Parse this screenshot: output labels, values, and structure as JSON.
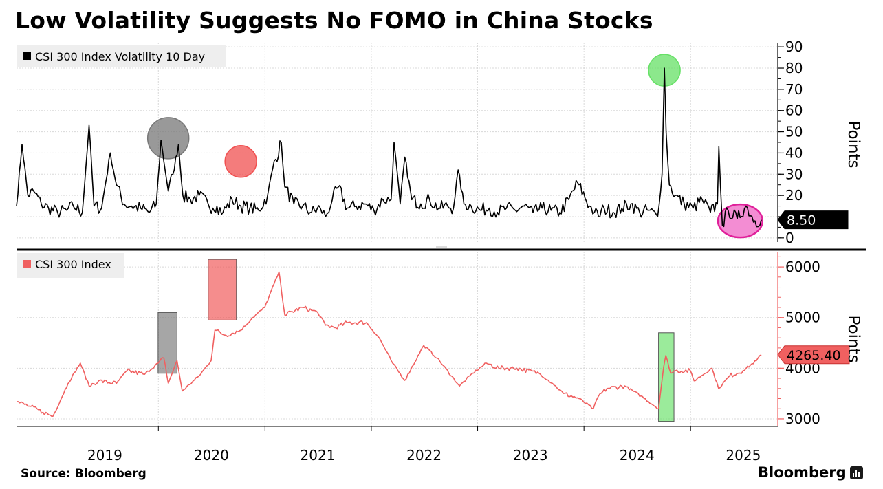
{
  "title": "Low Volatility Suggests No FOMO in China Stocks",
  "source": "Source: Bloomberg",
  "brand": "Bloomberg",
  "chart_data": [
    {
      "type": "line",
      "name": "volatility",
      "series": [
        {
          "name": "CSI 300 Index Volatility 10 Day",
          "color": "#000000"
        }
      ],
      "ylabel": "Points",
      "ylim": [
        -2,
        92
      ],
      "yticks": [
        0,
        10,
        20,
        30,
        40,
        50,
        60,
        70,
        80,
        90
      ],
      "last_value_label": "8.50",
      "x": [
        "2018-09-01",
        "2018-09-20",
        "2018-10-10",
        "2018-10-30",
        "2018-11-25",
        "2018-12-20",
        "2019-01-20",
        "2019-02-20",
        "2019-03-15",
        "2019-04-15",
        "2019-05-08",
        "2019-05-25",
        "2019-06-20",
        "2019-07-20",
        "2019-08-10",
        "2019-09-05",
        "2019-10-01",
        "2019-11-01",
        "2019-12-01",
        "2019-12-25",
        "2020-01-10",
        "2020-02-04",
        "2020-02-20",
        "2020-03-10",
        "2020-03-25",
        "2020-04-20",
        "2020-05-20",
        "2020-06-20",
        "2020-07-06",
        "2020-07-20",
        "2020-08-10",
        "2020-09-10",
        "2020-10-10",
        "2020-11-10",
        "2020-12-10",
        "2021-01-10",
        "2021-01-28",
        "2021-02-26",
        "2021-03-10",
        "2021-04-10",
        "2021-05-10",
        "2021-06-10",
        "2021-07-10",
        "2021-07-28",
        "2021-08-20",
        "2021-09-10",
        "2021-10-10",
        "2021-11-10",
        "2021-12-10",
        "2022-01-10",
        "2022-02-10",
        "2022-03-10",
        "2022-03-20",
        "2022-04-10",
        "2022-04-26",
        "2022-05-20",
        "2022-06-20",
        "2022-07-20",
        "2022-08-20",
        "2022-09-20",
        "2022-10-10",
        "2022-10-26",
        "2022-11-15",
        "2022-12-10",
        "2023-01-10",
        "2023-02-10",
        "2023-03-10",
        "2023-04-10",
        "2023-05-10",
        "2023-06-10",
        "2023-07-10",
        "2023-08-10",
        "2023-09-10",
        "2023-10-10",
        "2023-11-10",
        "2023-12-10",
        "2024-01-20",
        "2024-02-06",
        "2024-02-20",
        "2024-03-10",
        "2024-04-10",
        "2024-05-10",
        "2024-06-10",
        "2024-07-10",
        "2024-08-10",
        "2024-09-10",
        "2024-09-25",
        "2024-10-03",
        "2024-10-09",
        "2024-10-20",
        "2024-11-10",
        "2024-12-10",
        "2025-01-10",
        "2025-02-10",
        "2025-03-10",
        "2025-04-03",
        "2025-04-08",
        "2025-04-20",
        "2025-05-10",
        "2025-06-10",
        "2025-07-10",
        "2025-08-10",
        "2025-09-01"
      ],
      "values": [
        15,
        44,
        20,
        22,
        16,
        14,
        12,
        13,
        15,
        12,
        53,
        15,
        14,
        40,
        25,
        16,
        15,
        14,
        12,
        16,
        46,
        22,
        30,
        44,
        20,
        18,
        20,
        16,
        14,
        15,
        12,
        18,
        15,
        14,
        13,
        20,
        33,
        45,
        24,
        16,
        15,
        12,
        14,
        10,
        18,
        24,
        14,
        15,
        16,
        13,
        18,
        18,
        45,
        16,
        38,
        18,
        16,
        18,
        14,
        15,
        14,
        32,
        16,
        15,
        13,
        14,
        12,
        14,
        13,
        15,
        12,
        14,
        13,
        12,
        18,
        26,
        15,
        12,
        10,
        14,
        12,
        14,
        16,
        12,
        13,
        10,
        30,
        80,
        50,
        25,
        20,
        16,
        14,
        18,
        12,
        16,
        43,
        6,
        13,
        9,
        15,
        8,
        8.5
      ],
      "x_range": [
        "2018-09-01",
        "2025-10-25"
      ],
      "annotations": [
        {
          "type": "circle",
          "x": "2020-02-04",
          "y": 47,
          "color": "#777777"
        },
        {
          "type": "circle",
          "x": "2020-10-10",
          "y": 36,
          "color": "#f05050"
        },
        {
          "type": "circle",
          "x": "2024-10-03",
          "y": 79,
          "color": "#66e066"
        },
        {
          "type": "ellipse",
          "x_from": "2025-04-05",
          "x_to": "2025-09-05",
          "y": 8,
          "color": "#f070c8"
        }
      ]
    },
    {
      "type": "line",
      "name": "index",
      "series": [
        {
          "name": "CSI 300 Index",
          "color": "#f06060"
        }
      ],
      "ylabel": "Points",
      "ylim": [
        2850,
        6300
      ],
      "yticks": [
        3000,
        4000,
        5000,
        6000
      ],
      "last_value_label": "4265.40",
      "x": [
        "2018-09-01",
        "2018-10-15",
        "2018-12-01",
        "2019-01-04",
        "2019-02-25",
        "2019-04-08",
        "2019-05-08",
        "2019-06-10",
        "2019-08-10",
        "2019-09-15",
        "2019-11-15",
        "2019-12-31",
        "2020-01-20",
        "2020-02-04",
        "2020-03-05",
        "2020-03-23",
        "2020-05-20",
        "2020-06-30",
        "2020-07-13",
        "2020-08-20",
        "2020-10-10",
        "2020-11-20",
        "2020-12-31",
        "2021-02-18",
        "2021-03-10",
        "2021-05-10",
        "2021-07-01",
        "2021-07-28",
        "2021-09-01",
        "2021-10-10",
        "2021-12-15",
        "2022-01-28",
        "2022-03-15",
        "2022-04-26",
        "2022-06-30",
        "2022-08-15",
        "2022-10-31",
        "2022-12-15",
        "2023-01-31",
        "2023-03-15",
        "2023-05-15",
        "2023-07-31",
        "2023-09-15",
        "2023-10-23",
        "2023-12-15",
        "2024-02-02",
        "2024-02-20",
        "2024-03-20",
        "2024-05-20",
        "2024-07-15",
        "2024-09-13",
        "2024-09-30",
        "2024-10-08",
        "2024-10-25",
        "2024-11-10",
        "2024-12-31",
        "2025-01-13",
        "2025-03-15",
        "2025-04-07",
        "2025-05-15",
        "2025-06-30",
        "2025-08-15",
        "2025-09-01"
      ],
      "values": [
        3340,
        3250,
        3130,
        3050,
        3700,
        4100,
        3650,
        3750,
        3700,
        3950,
        3880,
        4100,
        4200,
        3700,
        4150,
        3550,
        3850,
        4150,
        4750,
        4650,
        4750,
        5000,
        5200,
        5900,
        5050,
        5200,
        5100,
        4850,
        4800,
        4900,
        4900,
        4600,
        4100,
        3760,
        4450,
        4200,
        3650,
        3900,
        4100,
        4000,
        4000,
        3900,
        3700,
        3500,
        3400,
        3200,
        3450,
        3600,
        3650,
        3450,
        3200,
        4000,
        4250,
        3900,
        3950,
        3950,
        3750,
        4000,
        3600,
        3850,
        3950,
        4150,
        4265.4
      ],
      "x_range": [
        "2018-09-01",
        "2025-10-25"
      ],
      "annotations": [
        {
          "type": "box",
          "x_from": "2019-12-31",
          "x_to": "2020-03-05",
          "y_from": 3900,
          "y_to": 5100,
          "color": "#777777"
        },
        {
          "type": "box",
          "x_from": "2020-06-20",
          "x_to": "2020-09-25",
          "y_from": 4950,
          "y_to": 6150,
          "color": "#f05050"
        },
        {
          "type": "box",
          "x_from": "2024-09-13",
          "x_to": "2024-11-05",
          "y_from": 2950,
          "y_to": 4700,
          "color": "#66e066"
        }
      ]
    }
  ],
  "xaxis": {
    "tick_labels": [
      "2019",
      "2020",
      "2021",
      "2022",
      "2023",
      "2024",
      "2025"
    ],
    "tick_dates": [
      "2019-07-01",
      "2020-07-01",
      "2021-07-01",
      "2022-07-01",
      "2023-07-01",
      "2024-07-01",
      "2025-07-01"
    ],
    "gridline_dates": [
      "2020-01-01",
      "2021-01-01",
      "2022-01-01",
      "2023-01-01",
      "2024-01-01",
      "2025-01-01"
    ]
  }
}
